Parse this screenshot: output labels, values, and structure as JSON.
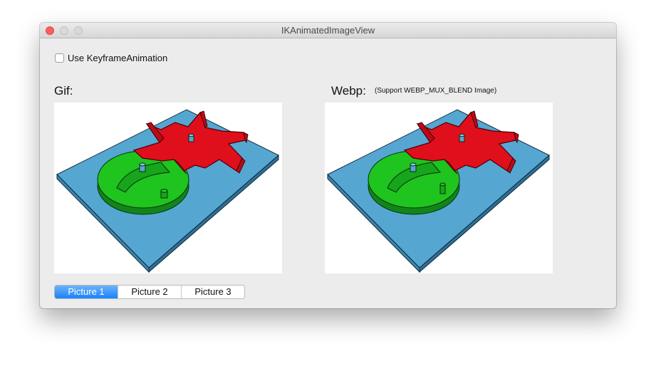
{
  "window": {
    "title": "IKAnimatedImageView"
  },
  "options": {
    "keyframe_checkbox_label": "Use KeyframeAnimation",
    "keyframe_checked": false
  },
  "gif_panel": {
    "heading": "Gif:"
  },
  "webp_panel": {
    "heading": "Webp:",
    "note": "(Support WEBP_MUX_BLEND Image)"
  },
  "picture_selector": {
    "segments": [
      "Picture 1",
      "Picture 2",
      "Picture 3"
    ],
    "selected": "Picture 1"
  },
  "colors": {
    "plate_blue": "#56a6d2",
    "gear_red": "#e00f1c",
    "disc_green": "#1fc41f",
    "selected_segment": "#1a82fb"
  }
}
